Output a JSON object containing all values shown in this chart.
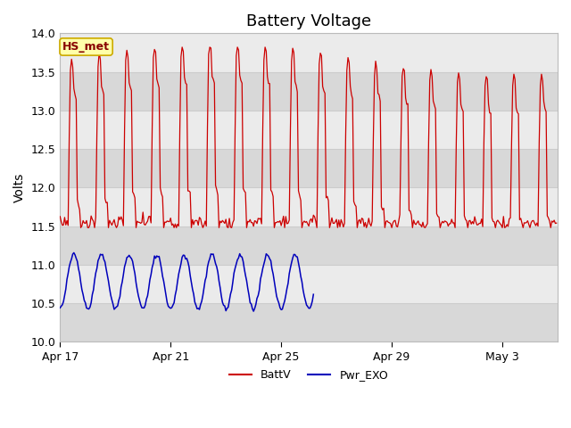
{
  "title": "Battery Voltage",
  "ylabel": "Volts",
  "ylim": [
    10.0,
    14.0
  ],
  "yticks": [
    10.0,
    10.5,
    11.0,
    11.5,
    12.0,
    12.5,
    13.0,
    13.5,
    14.0
  ],
  "fig_bg_color": "#ffffff",
  "plot_bg_light": "#ebebeb",
  "plot_bg_dark": "#d8d8d8",
  "grid_color": "#cccccc",
  "batt_color": "#cc0000",
  "exo_color": "#0000bb",
  "legend_label_batt": "BattV",
  "legend_label_exo": "Pwr_EXO",
  "watermark_text": "HS_met",
  "watermark_bg": "#ffffaa",
  "watermark_border": "#ccaa00",
  "watermark_fg": "#880000",
  "xticklabels": [
    "Apr 17",
    "Apr 21",
    "Apr 25",
    "Apr 29",
    "May 3"
  ],
  "xtick_positions_days": [
    0,
    4,
    8,
    12,
    16
  ],
  "num_days": 18,
  "exo_stop_day": 9.2,
  "title_fontsize": 13,
  "axis_fontsize": 10,
  "tick_fontsize": 9
}
